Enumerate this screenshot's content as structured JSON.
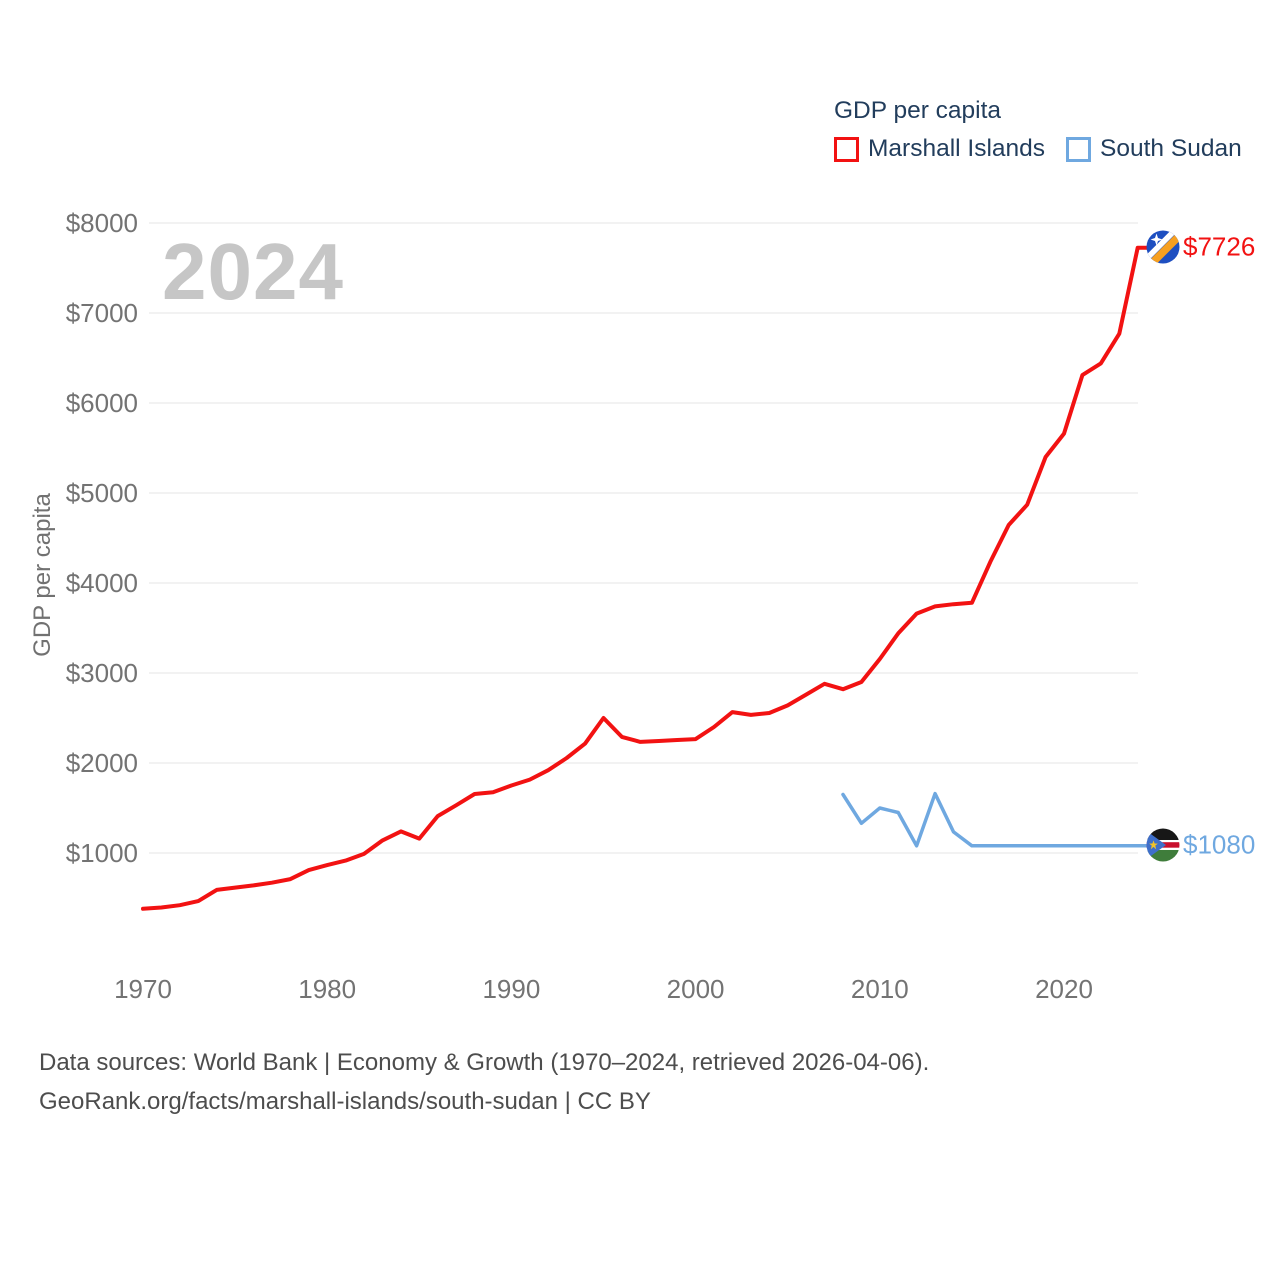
{
  "legend": {
    "title": "GDP per capita",
    "items": [
      {
        "label": "Marshall Islands",
        "color": "#f21212"
      },
      {
        "label": "South Sudan",
        "color": "#6fa8e0"
      }
    ]
  },
  "watermark": "2024",
  "y_axis": {
    "title": "GDP per capita",
    "tick_labels": [
      "$1000",
      "$2000",
      "$3000",
      "$4000",
      "$5000",
      "$6000",
      "$7000",
      "$8000"
    ],
    "tick_values": [
      1000,
      2000,
      3000,
      4000,
      5000,
      6000,
      7000,
      8000
    ]
  },
  "x_axis": {
    "tick_labels": [
      "1970",
      "1980",
      "1990",
      "2000",
      "2010",
      "2020"
    ],
    "tick_values": [
      1970,
      1980,
      1990,
      2000,
      2010,
      2020
    ]
  },
  "end_labels": [
    {
      "series": "Marshall Islands",
      "text": "$7726",
      "color": "#f21212",
      "flag_icon": "marshall-islands-flag"
    },
    {
      "series": "South Sudan",
      "text": "$1080",
      "color": "#6fa8e0",
      "flag_icon": "south-sudan-flag"
    }
  ],
  "footer": {
    "line1": "Data sources: World Bank | Economy & Growth (1970–2024, retrieved 2026-04-06).",
    "line2": "GeoRank.org/facts/marshall-islands/south-sudan | CC BY"
  },
  "chart_data": {
    "type": "line",
    "title": "GDP per capita",
    "xlabel": "",
    "ylabel": "GDP per capita",
    "x_range": [
      1970,
      2024
    ],
    "ylim": [
      0,
      8000
    ],
    "grid": "horizontal",
    "legend_position": "top-right",
    "series": [
      {
        "name": "Marshall Islands",
        "color": "#f21212",
        "end_value_label": "$7726",
        "x": [
          1970,
          1971,
          1972,
          1973,
          1974,
          1975,
          1976,
          1977,
          1978,
          1979,
          1980,
          1981,
          1982,
          1983,
          1984,
          1985,
          1986,
          1987,
          1988,
          1989,
          1990,
          1991,
          1992,
          1993,
          1994,
          1995,
          1996,
          1997,
          1998,
          1999,
          2000,
          2001,
          2002,
          2003,
          2004,
          2005,
          2006,
          2007,
          2008,
          2009,
          2010,
          2011,
          2012,
          2013,
          2014,
          2015,
          2016,
          2017,
          2018,
          2019,
          2020,
          2021,
          2022,
          2023,
          2024
        ],
        "values": [
          380,
          395,
          420,
          465,
          590,
          615,
          640,
          670,
          710,
          810,
          865,
          915,
          990,
          1140,
          1240,
          1160,
          1410,
          1530,
          1655,
          1675,
          1750,
          1815,
          1920,
          2055,
          2215,
          2500,
          2290,
          2235,
          2245,
          2255,
          2265,
          2400,
          2565,
          2535,
          2555,
          2640,
          2760,
          2880,
          2820,
          2900,
          3155,
          3440,
          3660,
          3740,
          3765,
          3780,
          4235,
          4645,
          4870,
          5400,
          5660,
          6310,
          6440,
          6770,
          7726
        ]
      },
      {
        "name": "South Sudan",
        "color": "#6fa8e0",
        "end_value_label": "$1080",
        "x": [
          2008,
          2009,
          2010,
          2011,
          2012,
          2013,
          2014,
          2015,
          2016,
          2017,
          2018,
          2019,
          2020,
          2021,
          2022,
          2023,
          2024
        ],
        "values": [
          1650,
          1330,
          1500,
          1450,
          1080,
          1660,
          1235,
          1080,
          1080,
          1080,
          1080,
          1080,
          1080,
          1080,
          1080,
          1080,
          1080
        ]
      }
    ]
  }
}
